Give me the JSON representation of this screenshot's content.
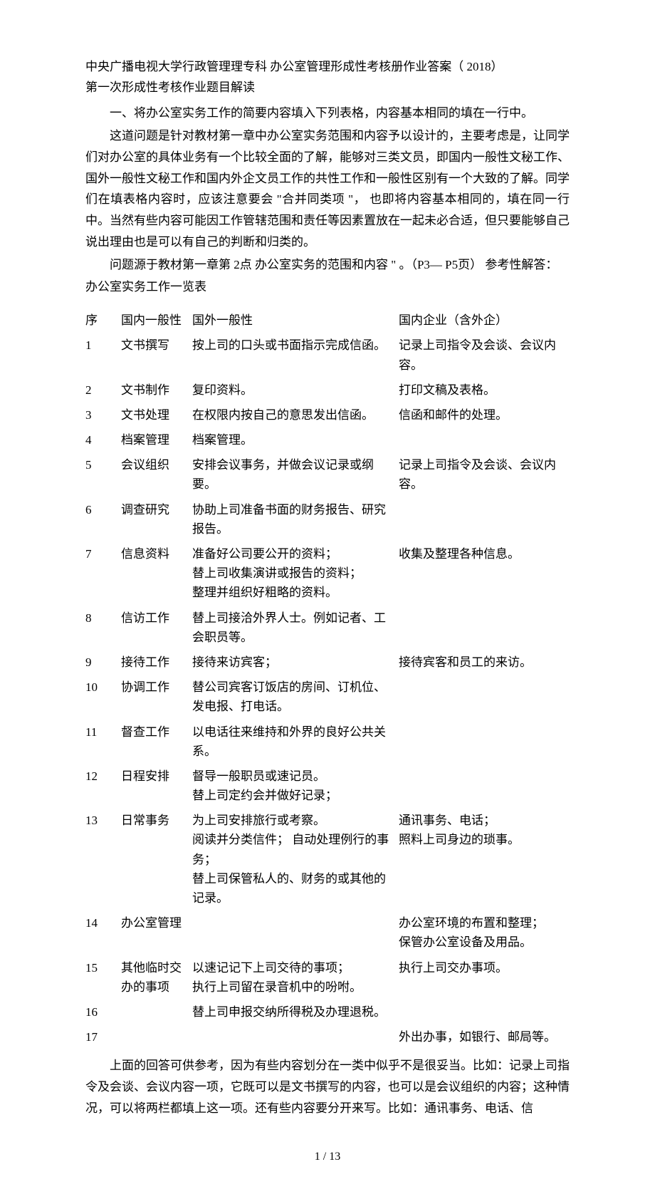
{
  "header": {
    "title": "中央广播电视大学行政管理理专科  办公室管理形成性考核册作业答案（  2018）",
    "subtitle": "第一次形成性考核作业题目解读"
  },
  "intro": {
    "p1": "一、将办公室实务工作的简要内容填入下列表格，内容基本相同的填在一行中。",
    "p2": "这道问题是针对教材第一章中办公室实务范围和内容予以设计的，主要考虑是，让同学们对办公室的具体业务有一个比较全面的了解，能够对三类文员，即国内一般性文秘工作、国外一般性文秘工作和国内外企文员工作的共性工作和一般性区别有一个大致的了解。同学们在填表格内容时，应该注意要会  \"合并同类项  \"，  也即将内容基本相同的，填在同一行中。当然有些内容可能因工作管辖范围和责任等因素置放在一起未必合适，但只要能够自己说出理由也是可以有自己的判断和归类的。",
    "p3": "问题源于教材第一章第  2点  办公室实务的范围和内容  \" 。（P3— P5页）   参考性解答：",
    "p4": "办公室实务工作一览表"
  },
  "table": {
    "headers": {
      "seq": "序",
      "domestic": "国内一般性",
      "foreign": "国外一般性",
      "enterprise": "国内企业（含外企）"
    },
    "rows": [
      {
        "seq": "1",
        "domestic": "文书撰写",
        "foreign": "按上司的口头或书面指示完成信函。",
        "enterprise": "记录上司指令及会谈、会议内容。"
      },
      {
        "seq": "2",
        "domestic": "文书制作",
        "foreign": "复印资料。",
        "enterprise": "打印文稿及表格。"
      },
      {
        "seq": "3",
        "domestic": "文书处理",
        "foreign": "在权限内按自己的意思发出信函。",
        "enterprise": "信函和邮件的处理。"
      },
      {
        "seq": "4",
        "domestic": "档案管理",
        "foreign": "档案管理。",
        "enterprise": ""
      },
      {
        "seq": "5",
        "domestic": "会议组织",
        "foreign": "安排会议事务，并做会议记录或纲要。",
        "enterprise": "记录上司指令及会谈、会议内容。"
      },
      {
        "seq": "6",
        "domestic": "调查研究",
        "foreign": "协助上司准备书面的财务报告、研究报告。",
        "enterprise": ""
      },
      {
        "seq": "7",
        "domestic": "信息资料",
        "foreign": "准备好公司要公开的资料；\n替上司收集演讲或报告的资料；\n整理并组织好粗略的资料。",
        "enterprise": "收集及整理各种信息。"
      },
      {
        "seq": "8",
        "domestic": "信访工作",
        "foreign": "替上司接洽外界人士。例如记者、工会职员等。",
        "enterprise": ""
      },
      {
        "seq": "9",
        "domestic": "接待工作",
        "foreign": "接待来访宾客；",
        "enterprise": "接待宾客和员工的来访。"
      },
      {
        "seq": "10",
        "domestic": "协调工作",
        "foreign": "替公司宾客订饭店的房间、订机位、发电报、打电话。",
        "enterprise": ""
      },
      {
        "seq": "11",
        "domestic": "督查工作",
        "foreign": "以电话往来维持和外界的良好公共关系。",
        "enterprise": ""
      },
      {
        "seq": "12",
        "domestic": "日程安排",
        "foreign": "督导一般职员或速记员。\n替上司定约会并做好记录；",
        "enterprise": ""
      },
      {
        "seq": "13",
        "domestic": "日常事务",
        "foreign": "为上司安排旅行或考察。\n阅读并分类信件；  自动处理例行的事务；\n替上司保管私人的、财务的或其他的记录。",
        "enterprise": "通讯事务、电话；\n照料上司身边的琐事。"
      },
      {
        "seq": "14",
        "domestic": "办公室管理",
        "foreign": "",
        "enterprise": "办公室环境的布置和整理；\n保管办公室设备及用品。"
      },
      {
        "seq": "15",
        "domestic": "其他临时交办的事项",
        "foreign": "以速记记下上司交待的事项；\n执行上司留在录音机中的吩咐。",
        "enterprise": "执行上司交办事项。"
      },
      {
        "seq": "16",
        "domestic": "",
        "foreign": "替上司申报交纳所得税及办理退税。",
        "enterprise": ""
      },
      {
        "seq": "17",
        "domestic": "",
        "foreign": "",
        "enterprise": "外出办事，如银行、邮局等。"
      }
    ]
  },
  "outro": {
    "p1": "上面的回答可供参考，因为有些内容划分在一类中似乎不是很妥当。比如：记录上司指令及会谈、会议内容一项，它既可以是文书撰写的内容，也可以是会议组织的内容；这种情况，可以将两栏都填上这一项。还有些内容要分开来写。比如：通讯事务、电话、信"
  },
  "footer": {
    "page": "1 / 13"
  }
}
